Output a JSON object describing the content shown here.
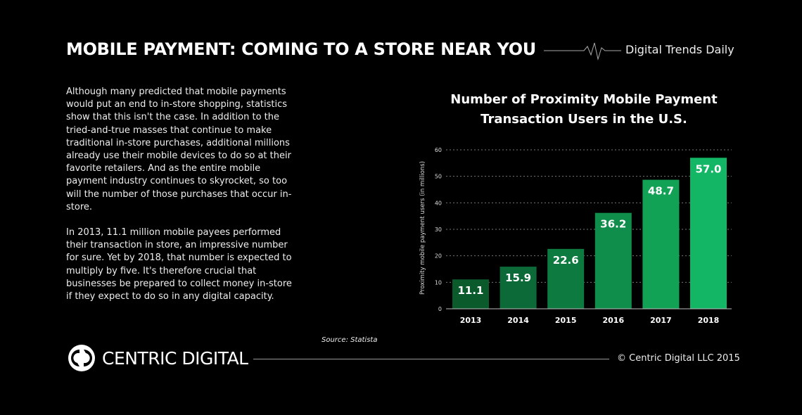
{
  "header": {
    "title": "MOBILE PAYMENT: COMING TO A STORE NEAR YOU",
    "brand": "Digital Trends Daily",
    "pulse_icon": "heartbeat-line"
  },
  "body": {
    "paragraphs": [
      "Although many predicted that mobile payments would put an end to in-store shopping, statistics show that this isn't the case. In addition to the tried-and-true masses that continue to make traditional in-store purchases, additional millions already use their mobile devices to do so at their favorite retailers. And as the entire mobile payment industry continues to skyrocket, so too will the number of those purchases that occur in-store.",
      "In 2013, 11.1 million mobile payees performed their transaction in store, an impressive number for sure. Yet by 2018, that number is expected to multiply by five. It's therefore crucial that businesses be prepared to collect money in-store if they expect to do so in any digital capacity."
    ]
  },
  "chart_data": {
    "type": "bar",
    "title": "Number of Proximity Mobile Payment Transaction Users in the U.S.",
    "xlabel": "",
    "ylabel": "Proximity mobile payment users (in millions)",
    "categories": [
      "2013",
      "2014",
      "2015",
      "2016",
      "2017",
      "2018"
    ],
    "values": [
      11.1,
      15.9,
      22.6,
      36.2,
      48.7,
      57.0
    ],
    "data_labels": [
      "11.1",
      "15.9",
      "22.6",
      "36.2",
      "48.7",
      "57.0"
    ],
    "ylim": [
      0,
      60
    ],
    "yticks": [
      "0",
      "10",
      "20",
      "30",
      "40",
      "50",
      "60"
    ],
    "grid": true,
    "colors": [
      "#0a5a2c",
      "#0b6a37",
      "#0d7a40",
      "#0f8d4a",
      "#11a256",
      "#13b664"
    ]
  },
  "footer": {
    "source": "Source: Statista",
    "logo": "CENTRIC DIGITAL",
    "copyright": "© Centric Digital LLC 2015"
  }
}
